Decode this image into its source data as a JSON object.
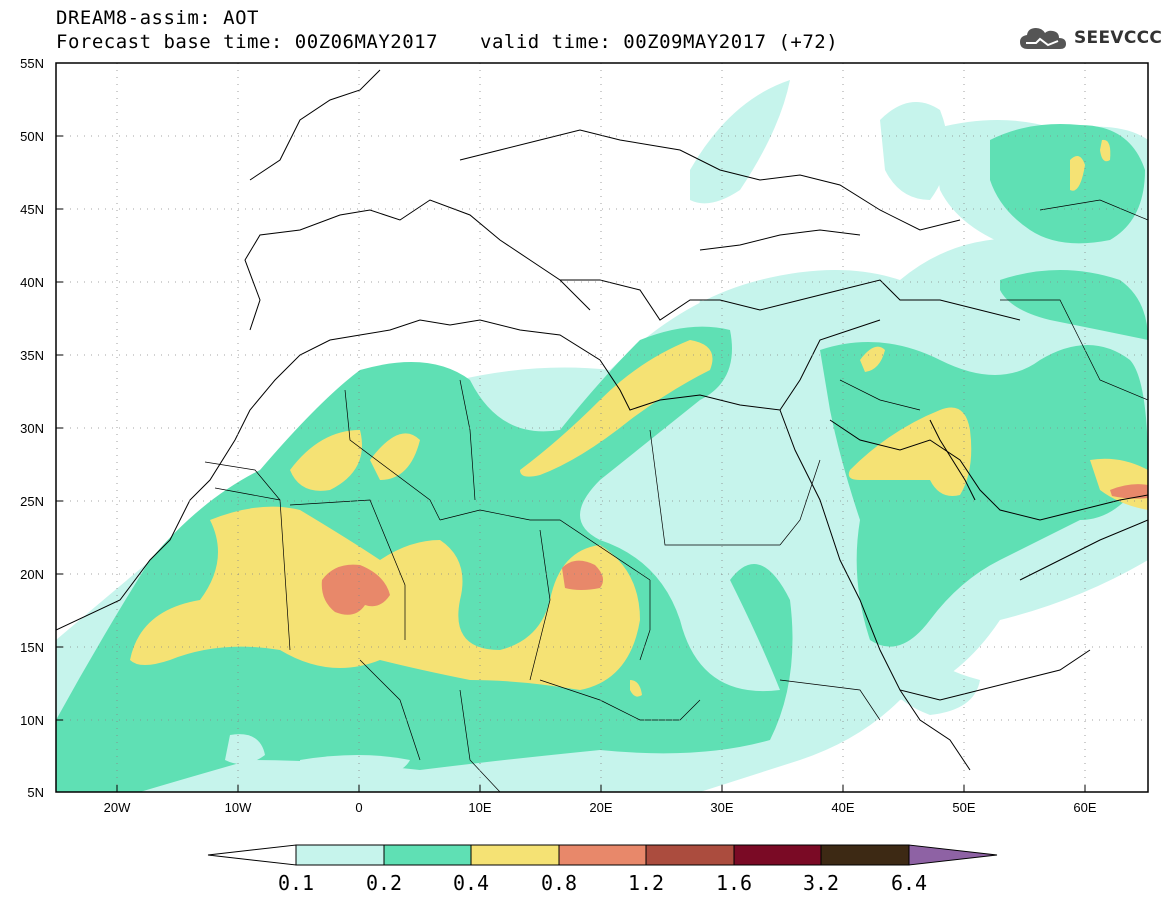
{
  "title": {
    "line1": "DREAM8-assim: AOT",
    "base_time": "Forecast base time: 00Z06MAY2017",
    "valid_time": "valid time: 00Z09MAY2017 (+72)"
  },
  "logo": {
    "text": "SEEVCCC",
    "icon": "cloud-icon"
  },
  "axes": {
    "lon_labels": [
      "20W",
      "10W",
      "0",
      "10E",
      "20E",
      "30E",
      "40E",
      "50E",
      "60E"
    ],
    "lat_labels": [
      "55N",
      "50N",
      "45N",
      "40N",
      "35N",
      "30N",
      "25N",
      "20N",
      "15N",
      "10N",
      "5N"
    ]
  },
  "colorbar": {
    "labels": [
      "0.1",
      "0.2",
      "0.4",
      "0.8",
      "1.2",
      "1.6",
      "3.2",
      "6.4"
    ],
    "colors": [
      "#ffffff",
      "#c6f4ec",
      "#5fe0b4",
      "#f5e274",
      "#e8886a",
      "#ab4c3e",
      "#7a0a25",
      "#3d2914",
      "#8e62a4"
    ]
  },
  "field_colors": {
    "low": "#c6f4ec",
    "mid": "#5fe0b4",
    "high": "#f5e274",
    "vhigh": "#e8886a"
  }
}
